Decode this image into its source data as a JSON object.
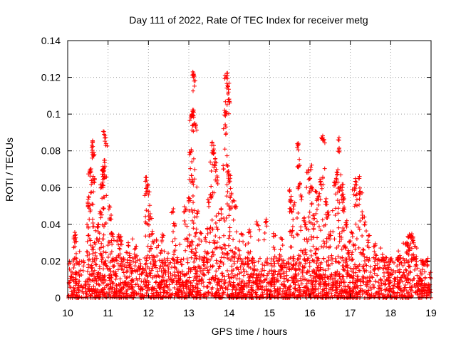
{
  "chart_data": {
    "type": "scatter",
    "title": "Day 111 of 2022, Rate Of TEC Index for receiver metg",
    "xlabel": "GPS time / hours",
    "ylabel": "ROTI / TECUs",
    "xlim": [
      10,
      19
    ],
    "ylim": [
      0,
      0.14
    ],
    "xticks": [
      "10",
      "11",
      "12",
      "13",
      "14",
      "15",
      "16",
      "17",
      "18",
      "19"
    ],
    "yticks": [
      "0",
      "0.02",
      "0.04",
      "0.06",
      "0.08",
      "0.1",
      "0.12",
      "0.14"
    ],
    "grid": true,
    "marker": "+",
    "color": "#ff0000",
    "series": [
      {
        "name": "ROTI",
        "baseline_noise": {
          "description": "dense cloud of points across the whole time range, mostly between 0 and 0.02 TECU/s",
          "x_range": [
            10.0,
            19.0
          ],
          "y_range": [
            0.0,
            0.022
          ]
        },
        "notable_points": [
          [
            10.18,
            0.034
          ],
          [
            10.18,
            0.032
          ],
          [
            10.5,
            0.052
          ],
          [
            10.52,
            0.055
          ],
          [
            10.55,
            0.068
          ],
          [
            10.57,
            0.069
          ],
          [
            10.6,
            0.079
          ],
          [
            10.6,
            0.083
          ],
          [
            10.62,
            0.078
          ],
          [
            10.62,
            0.085
          ],
          [
            10.65,
            0.063
          ],
          [
            10.66,
            0.03
          ],
          [
            10.75,
            0.04
          ],
          [
            10.8,
            0.047
          ],
          [
            10.85,
            0.062
          ],
          [
            10.87,
            0.07
          ],
          [
            10.88,
            0.069
          ],
          [
            10.9,
            0.065
          ],
          [
            10.9,
            0.089
          ],
          [
            10.92,
            0.087
          ],
          [
            10.95,
            0.084
          ],
          [
            11.03,
            0.05
          ],
          [
            11.05,
            0.043
          ],
          [
            11.1,
            0.035
          ],
          [
            11.25,
            0.033
          ],
          [
            11.3,
            0.032
          ],
          [
            11.5,
            0.03
          ],
          [
            11.7,
            0.028
          ],
          [
            11.95,
            0.064
          ],
          [
            11.97,
            0.06
          ],
          [
            12.0,
            0.056
          ],
          [
            12.05,
            0.044
          ],
          [
            12.1,
            0.035
          ],
          [
            12.2,
            0.031
          ],
          [
            12.35,
            0.033
          ],
          [
            12.6,
            0.047
          ],
          [
            12.65,
            0.039
          ],
          [
            12.92,
            0.048
          ],
          [
            13.0,
            0.053
          ],
          [
            13.02,
            0.078
          ],
          [
            13.05,
            0.098
          ],
          [
            13.07,
            0.1
          ],
          [
            13.1,
            0.099
          ],
          [
            13.12,
            0.101
          ],
          [
            13.1,
            0.123
          ],
          [
            13.12,
            0.121
          ],
          [
            13.13,
            0.118
          ],
          [
            13.15,
            0.095
          ],
          [
            13.17,
            0.093
          ],
          [
            13.2,
            0.046
          ],
          [
            13.3,
            0.035
          ],
          [
            13.4,
            0.032
          ],
          [
            13.5,
            0.052
          ],
          [
            13.55,
            0.055
          ],
          [
            13.57,
            0.083
          ],
          [
            13.6,
            0.08
          ],
          [
            13.62,
            0.079
          ],
          [
            13.65,
            0.074
          ],
          [
            13.68,
            0.07
          ],
          [
            13.7,
            0.064
          ],
          [
            13.8,
            0.048
          ],
          [
            13.85,
            0.072
          ],
          [
            13.9,
            0.101
          ],
          [
            13.92,
            0.093
          ],
          [
            13.93,
            0.1
          ],
          [
            13.92,
            0.12
          ],
          [
            13.95,
            0.121
          ],
          [
            13.97,
            0.115
          ],
          [
            13.98,
            0.112
          ],
          [
            14.0,
            0.107
          ],
          [
            13.98,
            0.069
          ],
          [
            14.0,
            0.064
          ],
          [
            14.05,
            0.056
          ],
          [
            14.1,
            0.053
          ],
          [
            14.15,
            0.05
          ],
          [
            14.3,
            0.035
          ],
          [
            14.5,
            0.037
          ],
          [
            14.7,
            0.04
          ],
          [
            14.9,
            0.041
          ],
          [
            15.1,
            0.035
          ],
          [
            15.3,
            0.032
          ],
          [
            15.5,
            0.058
          ],
          [
            15.52,
            0.052
          ],
          [
            15.55,
            0.047
          ],
          [
            15.6,
            0.05
          ],
          [
            15.7,
            0.083
          ],
          [
            15.72,
            0.072
          ],
          [
            15.75,
            0.062
          ],
          [
            15.8,
            0.055
          ],
          [
            15.85,
            0.042
          ],
          [
            15.9,
            0.04
          ],
          [
            15.95,
            0.068
          ],
          [
            16.0,
            0.065
          ],
          [
            16.02,
            0.071
          ],
          [
            16.05,
            0.06
          ],
          [
            16.1,
            0.045
          ],
          [
            16.15,
            0.058
          ],
          [
            16.2,
            0.055
          ],
          [
            16.25,
            0.063
          ],
          [
            16.3,
            0.087
          ],
          [
            16.32,
            0.087
          ],
          [
            16.35,
            0.086
          ],
          [
            16.4,
            0.052
          ],
          [
            16.45,
            0.045
          ],
          [
            16.5,
            0.034
          ],
          [
            16.6,
            0.061
          ],
          [
            16.65,
            0.065
          ],
          [
            16.68,
            0.068
          ],
          [
            16.7,
            0.086
          ],
          [
            16.72,
            0.081
          ],
          [
            16.75,
            0.06
          ],
          [
            16.8,
            0.06
          ],
          [
            16.82,
            0.055
          ],
          [
            16.85,
            0.048
          ],
          [
            16.9,
            0.04
          ],
          [
            17.0,
            0.031
          ],
          [
            17.05,
            0.035
          ],
          [
            17.1,
            0.06
          ],
          [
            17.15,
            0.063
          ],
          [
            17.2,
            0.065
          ],
          [
            17.25,
            0.058
          ],
          [
            17.3,
            0.045
          ],
          [
            17.35,
            0.04
          ],
          [
            17.45,
            0.034
          ],
          [
            17.6,
            0.028
          ],
          [
            17.8,
            0.022
          ],
          [
            18.0,
            0.02
          ],
          [
            18.2,
            0.022
          ],
          [
            18.4,
            0.03
          ],
          [
            18.45,
            0.033
          ],
          [
            18.5,
            0.034
          ],
          [
            18.55,
            0.032
          ],
          [
            18.6,
            0.028
          ],
          [
            18.8,
            0.02
          ],
          [
            18.9,
            0.018
          ]
        ]
      }
    ]
  }
}
